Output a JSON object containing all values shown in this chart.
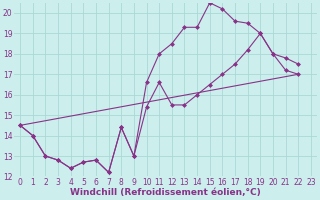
{
  "xlabel": "Windchill (Refroidissement éolien,°C)",
  "bg_color": "#cceeed",
  "grid_color": "#aad8d4",
  "line_color": "#883388",
  "xlim": [
    -0.5,
    23.5
  ],
  "ylim": [
    12,
    20.5
  ],
  "xticks": [
    0,
    1,
    2,
    3,
    4,
    5,
    6,
    7,
    8,
    9,
    10,
    11,
    12,
    13,
    14,
    15,
    16,
    17,
    18,
    19,
    20,
    21,
    22,
    23
  ],
  "yticks": [
    12,
    13,
    14,
    15,
    16,
    17,
    18,
    19,
    20
  ],
  "line1_x": [
    0,
    1,
    2,
    3,
    4,
    5,
    6,
    7,
    8,
    9,
    10,
    11,
    12,
    13,
    14,
    15,
    16,
    17,
    18,
    19,
    20,
    21,
    22
  ],
  "line1_y": [
    14.5,
    14.0,
    13.0,
    12.8,
    12.4,
    12.7,
    12.8,
    12.2,
    14.4,
    13.0,
    16.6,
    18.0,
    18.5,
    19.3,
    19.3,
    20.5,
    20.2,
    19.6,
    19.5,
    19.0,
    18.0,
    17.8,
    17.5
  ],
  "line2_x": [
    0,
    1,
    2,
    3,
    4,
    5,
    6,
    7,
    8,
    9,
    10,
    11,
    12,
    13,
    14,
    15,
    16,
    17,
    18,
    19,
    20,
    21,
    22
  ],
  "line2_y": [
    14.5,
    14.0,
    13.0,
    12.8,
    12.4,
    12.7,
    12.8,
    12.2,
    14.4,
    13.0,
    15.4,
    16.6,
    15.5,
    15.5,
    16.0,
    16.5,
    17.0,
    17.5,
    18.2,
    19.0,
    18.0,
    17.2,
    17.0
  ],
  "line3_x": [
    0,
    22
  ],
  "line3_y": [
    14.5,
    17.0
  ],
  "tick_fontsize": 5.5,
  "xlabel_fontsize": 6.5
}
